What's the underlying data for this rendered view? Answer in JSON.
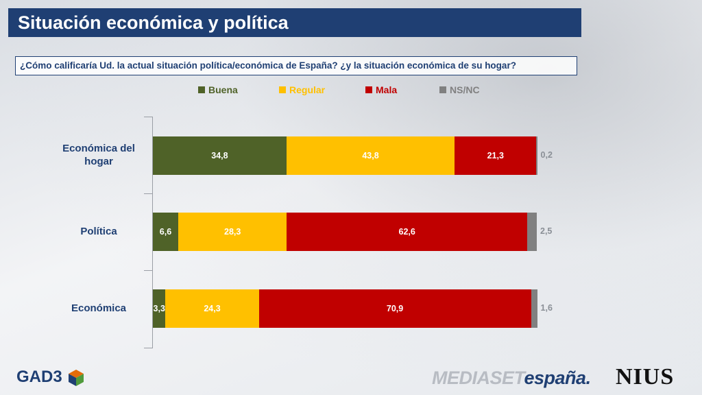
{
  "title": "Situación económica y política",
  "question": "¿Cómo calificaría Ud. la actual situación política/económica de España? ¿y la situación económica de su hogar?",
  "colors": {
    "Buena": "#4f6228",
    "Regular": "#ffc000",
    "Mala": "#c00000",
    "NS/NC": "#808080",
    "title_bg": "#1f3f73"
  },
  "chart_data": {
    "type": "bar",
    "orientation": "horizontal",
    "stacked": true,
    "categories": [
      "Económica del hogar",
      "Política",
      "Económica"
    ],
    "series": [
      {
        "name": "Buena",
        "values": [
          34.8,
          6.6,
          3.3
        ]
      },
      {
        "name": "Regular",
        "values": [
          43.8,
          28.3,
          24.3
        ]
      },
      {
        "name": "Mala",
        "values": [
          21.3,
          62.6,
          70.9
        ]
      },
      {
        "name": "NS/NC",
        "values": [
          0.2,
          2.5,
          1.6
        ]
      }
    ],
    "data_labels": [
      [
        "34,8",
        "43,8",
        "21,3",
        "0,2"
      ],
      [
        "6,6",
        "28,3",
        "62,6",
        "2,5"
      ],
      [
        "3,3",
        "24,3",
        "70,9",
        "1,6"
      ]
    ],
    "xlim": [
      0,
      100
    ],
    "legend_position": "top",
    "grid": false
  },
  "logos": {
    "gad3": "GAD3",
    "mediaset_part1": "MEDIASET",
    "mediaset_part2": "españa.",
    "nius": "NIUS"
  }
}
